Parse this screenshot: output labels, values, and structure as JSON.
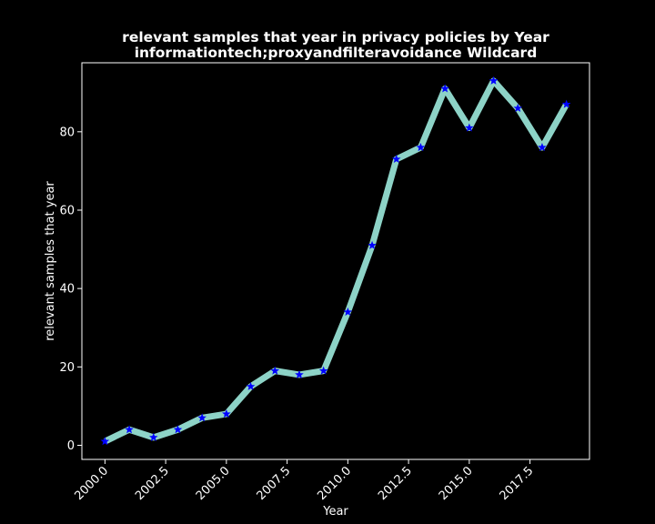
{
  "chart_data": {
    "type": "line",
    "title": "relevant samples that year in privacy policies by Year",
    "subtitle": "informationtech;proxyandfilteravoidance Wildcard",
    "xlabel": "Year",
    "ylabel": "relevant samples that year",
    "x": [
      2000,
      2001,
      2002,
      2003,
      2004,
      2005,
      2006,
      2007,
      2008,
      2009,
      2010,
      2011,
      2012,
      2013,
      2014,
      2015,
      2016,
      2017,
      2018,
      2019
    ],
    "series": [
      {
        "values": [
          1,
          4,
          2,
          4,
          7,
          8,
          15,
          19,
          18,
          19,
          34,
          51,
          73,
          76,
          91,
          81,
          93,
          86,
          76,
          87
        ]
      }
    ],
    "xlim": [
      1999.05,
      2019.95
    ],
    "ylim": [
      -3.6,
      97.6
    ],
    "xticks": [
      "2000.0",
      "2002.5",
      "2005.0",
      "2007.5",
      "2010.0",
      "2012.5",
      "2015.0",
      "2017.5"
    ],
    "xtick_values": [
      2000,
      2002.5,
      2005,
      2007.5,
      2010,
      2012.5,
      2015,
      2017.5
    ],
    "yticks": [
      "0",
      "20",
      "40",
      "60",
      "80"
    ],
    "ytick_values": [
      0,
      20,
      40,
      60,
      80
    ],
    "grid": false,
    "line_color": "#8dd3c7",
    "marker_color": "#0000ff",
    "marker": "star",
    "background": "#000000",
    "foreground": "#ffffff"
  }
}
